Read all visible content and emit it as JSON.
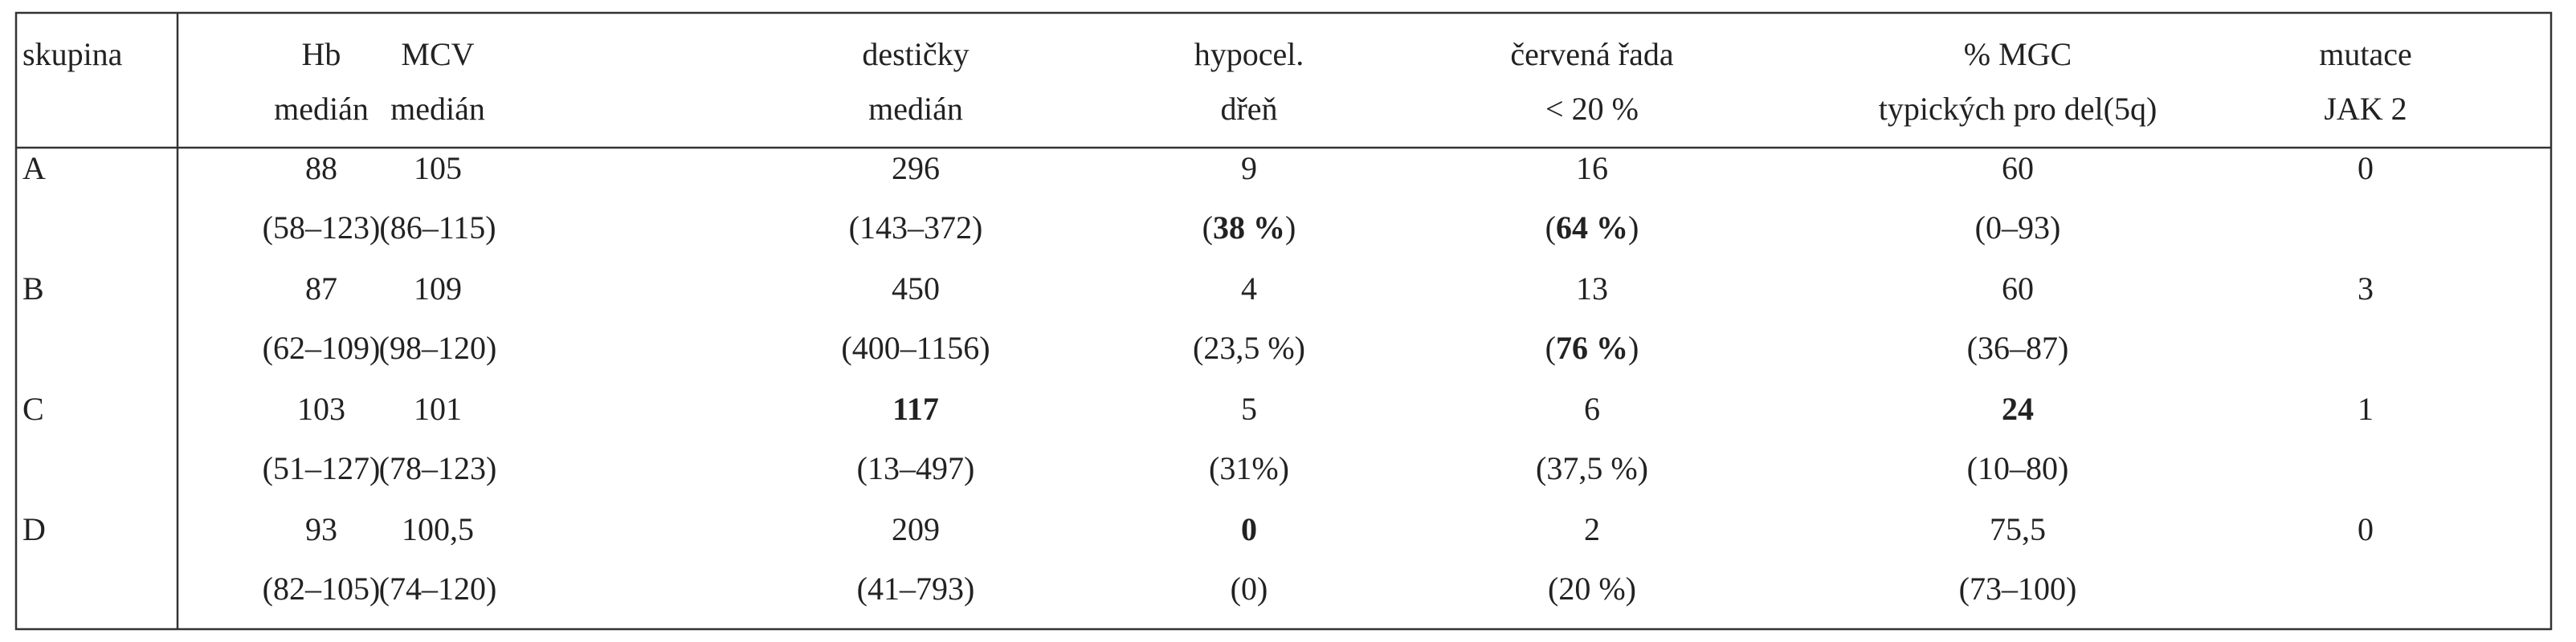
{
  "table": {
    "header": [
      [
        "skupina"
      ],
      [
        "Hb",
        "medián"
      ],
      [
        "MCV",
        "medián"
      ],
      [
        "destičky",
        "medián"
      ],
      [
        "hypocel.",
        "dřeň"
      ],
      [
        "červená řada",
        "< 20 %"
      ],
      [
        "% MGC",
        "typických pro del(5q)"
      ],
      [
        "mutace",
        "JAK 2"
      ]
    ],
    "rows": [
      {
        "group": "A",
        "cells": [
          [
            "88",
            "(58–123)"
          ],
          [
            "105",
            "(86–115)"
          ],
          [
            "296",
            "(143–372)"
          ],
          [
            "9",
            {
              "runs": [
                {
                  "text": "("
                },
                {
                  "text": "38 %",
                  "bold": true
                },
                {
                  "text": ")"
                }
              ]
            }
          ],
          [
            "16",
            {
              "runs": [
                {
                  "text": "("
                },
                {
                  "text": "64 %",
                  "bold": true
                },
                {
                  "text": ")"
                }
              ]
            }
          ],
          [
            "60",
            "(0–93)"
          ],
          [
            "0"
          ]
        ]
      },
      {
        "group": "B",
        "cells": [
          [
            "87",
            "(62–109)"
          ],
          [
            "109",
            "(98–120)"
          ],
          [
            "450",
            "(400–1156)"
          ],
          [
            "4",
            "(23,5 %)"
          ],
          [
            "13",
            {
              "runs": [
                {
                  "text": "("
                },
                {
                  "text": "76 %",
                  "bold": true
                },
                {
                  "text": ")"
                }
              ]
            }
          ],
          [
            "60",
            "(36–87)"
          ],
          [
            "3"
          ]
        ]
      },
      {
        "group": "C",
        "cells": [
          [
            "103",
            "(51–127)"
          ],
          [
            "101",
            "(78–123)"
          ],
          [
            {
              "text": "117",
              "bold": true
            },
            "(13–497)"
          ],
          [
            "5",
            "(31%)"
          ],
          [
            "6",
            "(37,5 %)"
          ],
          [
            {
              "text": "24",
              "bold": true
            },
            "(10–80)"
          ],
          [
            "1"
          ]
        ]
      },
      {
        "group": "D",
        "cells": [
          [
            "93",
            "(82–105)"
          ],
          [
            "100,5",
            "(74–120)"
          ],
          [
            "209",
            "(41–793)"
          ],
          [
            {
              "text": "0",
              "bold": true
            },
            "(0)"
          ],
          [
            "2",
            "(20 %)"
          ],
          [
            "75,5",
            "(73–100)"
          ],
          [
            "0"
          ]
        ]
      }
    ]
  }
}
